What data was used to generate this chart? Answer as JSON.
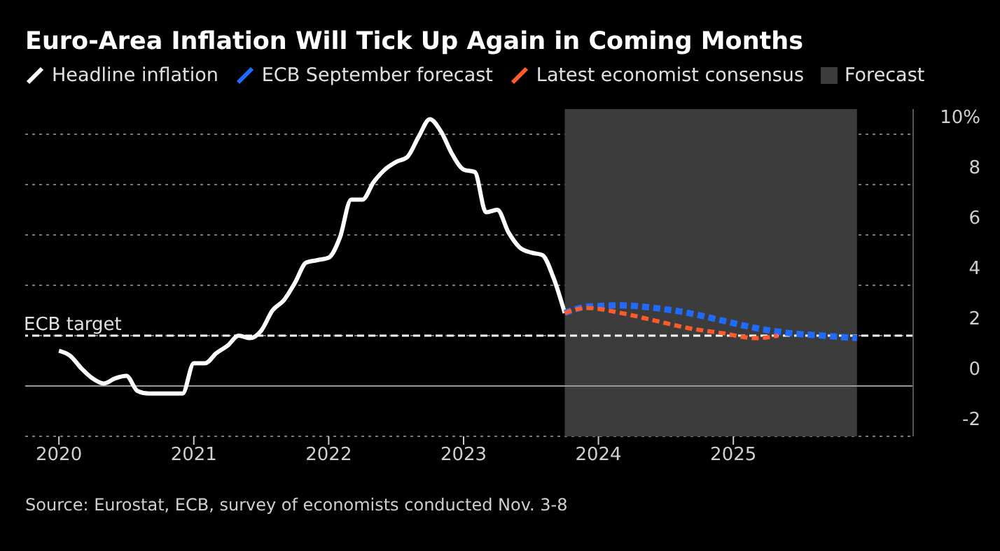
{
  "chart_data": {
    "type": "line",
    "title": "Euro-Area Inflation Will Tick Up Again in Coming Months",
    "annotations": [
      "Source: Eurostat, ECB, survey of economists conducted Nov. 3-8"
    ],
    "series": [
      {
        "name": "Headline inflation",
        "color": "#ffffff",
        "line_style": "solid",
        "x": [
          "2020-01",
          "2020-02",
          "2020-03",
          "2020-04",
          "2020-05",
          "2020-06",
          "2020-07",
          "2020-08",
          "2020-09",
          "2020-10",
          "2020-11",
          "2020-12",
          "2021-01",
          "2021-02",
          "2021-03",
          "2021-04",
          "2021-05",
          "2021-06",
          "2021-07",
          "2021-08",
          "2021-09",
          "2021-10",
          "2021-11",
          "2021-12",
          "2022-01",
          "2022-02",
          "2022-03",
          "2022-04",
          "2022-05",
          "2022-06",
          "2022-07",
          "2022-08",
          "2022-09",
          "2022-10",
          "2022-11",
          "2022-12",
          "2023-01",
          "2023-02",
          "2023-03",
          "2023-04",
          "2023-05",
          "2023-06",
          "2023-07",
          "2023-08",
          "2023-09",
          "2023-10"
        ],
        "values": [
          1.4,
          1.2,
          0.7,
          0.3,
          0.1,
          0.3,
          0.4,
          -0.2,
          -0.3,
          -0.3,
          -0.3,
          -0.3,
          0.9,
          0.9,
          1.3,
          1.6,
          2.0,
          1.9,
          2.2,
          3.0,
          3.4,
          4.1,
          4.9,
          5.0,
          5.1,
          5.9,
          7.4,
          7.4,
          8.1,
          8.6,
          8.9,
          9.1,
          9.9,
          10.6,
          10.1,
          9.2,
          8.6,
          8.5,
          6.9,
          7.0,
          6.1,
          5.5,
          5.3,
          5.2,
          4.3,
          2.9
        ]
      },
      {
        "name": "ECB September forecast",
        "color": "#1f6bff",
        "line_style": "dashed",
        "x": [
          "2023-10",
          "2023-12",
          "2024-03",
          "2024-06",
          "2024-09",
          "2024-12",
          "2025-03",
          "2025-06",
          "2025-09",
          "2025-12"
        ],
        "values": [
          2.9,
          3.15,
          3.2,
          3.1,
          2.9,
          2.6,
          2.3,
          2.1,
          2.0,
          1.9
        ]
      },
      {
        "name": "Latest economist consensus",
        "color": "#ff5a2a",
        "line_style": "dashed",
        "x": [
          "2023-10",
          "2023-12",
          "2024-03",
          "2024-06",
          "2024-09",
          "2024-12",
          "2025-03",
          "2025-05"
        ],
        "values": [
          2.9,
          3.1,
          2.9,
          2.6,
          2.3,
          2.1,
          1.9,
          2.0
        ]
      }
    ],
    "bands": [
      {
        "axis": "x",
        "from": "2023-10",
        "to": "2025-12",
        "label": "Forecast",
        "color": "#3c3c3c"
      }
    ],
    "ref_lines": [
      {
        "axis": "y",
        "value": 2,
        "label": "ECB target",
        "color": "#ffffff",
        "line_style": "dashed"
      }
    ],
    "xlim": [
      "2019-10",
      "2026-05"
    ],
    "xticks": [
      "2020",
      "2021",
      "2022",
      "2023",
      "2024",
      "2025"
    ],
    "ylim": [
      -2,
      11
    ],
    "yticks": [
      {
        "value": 10,
        "label": "10%"
      },
      8,
      6,
      4,
      2,
      0,
      -2
    ],
    "grid": "y",
    "legend": "top left",
    "marker": "none"
  }
}
